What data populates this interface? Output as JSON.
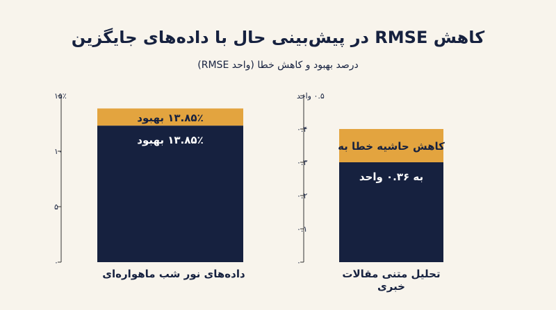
{
  "title": "کاهش RMSE در پیش‌بینی حال با داده‌های جایگزین",
  "subtitle": "درصد بهبود و کاهش خطا (واحد RMSE)",
  "colors": {
    "background": "#f8f4ec",
    "base": "#16213f",
    "highlight": "#e3a43f",
    "axis": "#333333"
  },
  "chart_data": [
    {
      "type": "bar",
      "categories": [
        "داده‌های نور شب ماهواره‌ای"
      ],
      "xlabel": "داده‌های نور شب ماهواره‌ای",
      "ylim": [
        0,
        15
      ],
      "yticks": [
        {
          "value": 0,
          "label": "۰"
        },
        {
          "value": 5,
          "label": "۵"
        },
        {
          "value": 10,
          "label": "۱۰"
        },
        {
          "value": 15,
          "label": "۱۵٪"
        }
      ],
      "series": [
        {
          "values": [
            12.3
          ],
          "label": "۱۳.۸۵٪ بهبود",
          "color": "#16213f"
        },
        {
          "values": [
            13.85
          ],
          "label": "۱۳.۸۵٪ بهبود",
          "color": "#e3a43f"
        }
      ]
    },
    {
      "type": "bar",
      "categories": [
        "تحلیل متنی مقالات خبری"
      ],
      "xlabel": "تحلیل متنی مقالات خبری",
      "ylim": [
        0,
        0.5
      ],
      "yticks": [
        {
          "value": 0,
          "label": "۰"
        },
        {
          "value": 0.1,
          "label": "۰.۱"
        },
        {
          "value": 0.2,
          "label": "۰.۲"
        },
        {
          "value": 0.3,
          "label": "۰.۳"
        },
        {
          "value": 0.4,
          "label": "۰.۴"
        },
        {
          "value": 0.5,
          "label": "۰.۵ واحد"
        }
      ],
      "series": [
        {
          "values": [
            0.3
          ],
          "label": "به ۰.۳۶ واحد",
          "color": "#16213f"
        },
        {
          "values": [
            0.4
          ],
          "label": "کاهش حاشیه خطا به",
          "color": "#e3a43f"
        }
      ]
    }
  ]
}
